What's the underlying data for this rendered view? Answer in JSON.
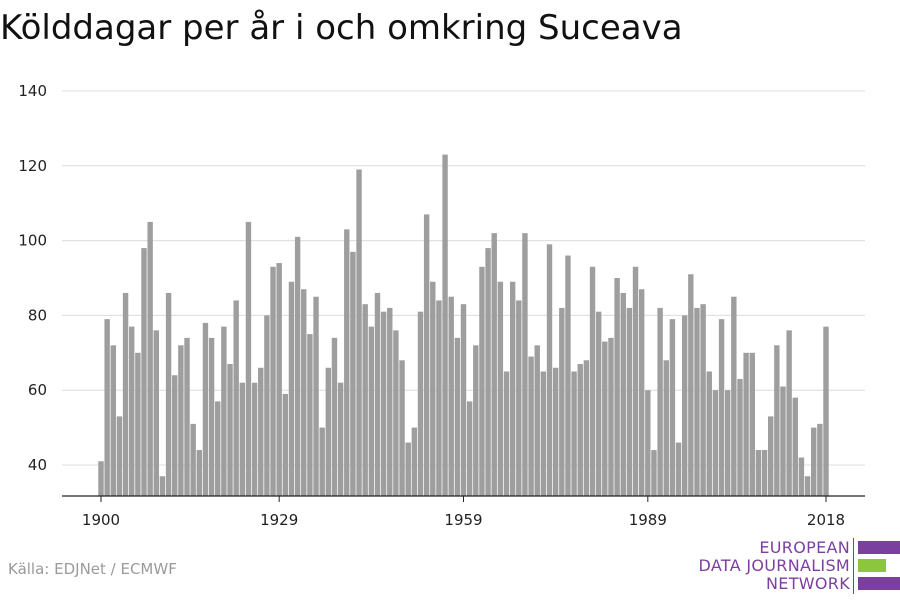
{
  "chart_data": {
    "type": "bar",
    "title": "Kölddagar per år i och omkring Suceava",
    "xlabel": "",
    "ylabel": "",
    "ylim": [
      31.5,
      140
    ],
    "yticks": [
      40,
      60,
      80,
      100,
      120,
      140
    ],
    "xticks": [
      1900,
      1929,
      1959,
      1989,
      2018
    ],
    "grid": true,
    "bar_color": "#9e9e9e",
    "x": [
      1900,
      1901,
      1902,
      1903,
      1904,
      1905,
      1906,
      1907,
      1908,
      1909,
      1910,
      1911,
      1912,
      1913,
      1914,
      1915,
      1916,
      1917,
      1918,
      1919,
      1920,
      1921,
      1922,
      1923,
      1924,
      1925,
      1926,
      1927,
      1928,
      1929,
      1930,
      1931,
      1932,
      1933,
      1934,
      1935,
      1936,
      1937,
      1938,
      1939,
      1940,
      1941,
      1942,
      1943,
      1944,
      1945,
      1946,
      1947,
      1948,
      1949,
      1950,
      1951,
      1952,
      1953,
      1954,
      1955,
      1956,
      1957,
      1958,
      1959,
      1960,
      1961,
      1962,
      1963,
      1964,
      1965,
      1966,
      1967,
      1968,
      1969,
      1970,
      1971,
      1972,
      1973,
      1974,
      1975,
      1976,
      1977,
      1978,
      1979,
      1980,
      1981,
      1982,
      1983,
      1984,
      1985,
      1986,
      1987,
      1988,
      1989,
      1990,
      1991,
      1992,
      1993,
      1994,
      1995,
      1996,
      1997,
      1998,
      1999,
      2000,
      2001,
      2002,
      2003,
      2004,
      2005,
      2006,
      2007,
      2008,
      2009,
      2010,
      2011,
      2012,
      2013,
      2014,
      2015,
      2016,
      2017,
      2018
    ],
    "values": [
      41,
      79,
      72,
      53,
      86,
      77,
      70,
      98,
      105,
      76,
      37,
      86,
      64,
      72,
      74,
      51,
      44,
      78,
      74,
      57,
      77,
      67,
      84,
      62,
      105,
      62,
      66,
      80,
      93,
      94,
      59,
      89,
      101,
      87,
      75,
      85,
      50,
      66,
      74,
      62,
      103,
      97,
      119,
      83,
      77,
      86,
      81,
      82,
      76,
      68,
      46,
      50,
      81,
      107,
      89,
      84,
      123,
      85,
      74,
      83,
      57,
      72,
      93,
      98,
      102,
      89,
      65,
      89,
      84,
      102,
      69,
      72,
      65,
      99,
      66,
      82,
      96,
      65,
      67,
      68,
      93,
      81,
      73,
      74,
      90,
      86,
      82,
      93,
      87,
      60,
      44,
      82,
      68,
      79,
      46,
      80,
      91,
      82,
      83,
      65,
      60,
      79,
      60,
      85,
      63,
      70,
      70,
      44,
      44,
      53,
      72,
      61,
      76,
      58,
      42,
      37,
      50,
      51,
      77
    ]
  },
  "source": "Källa: EDJNet / ECMWF",
  "logo": {
    "line1": "EUROPEAN",
    "line2": "DATA JOURNALISM",
    "line3": "NETWORK",
    "colors": [
      "#7b3fa0",
      "#8cc63f",
      "#7b3fa0"
    ]
  }
}
